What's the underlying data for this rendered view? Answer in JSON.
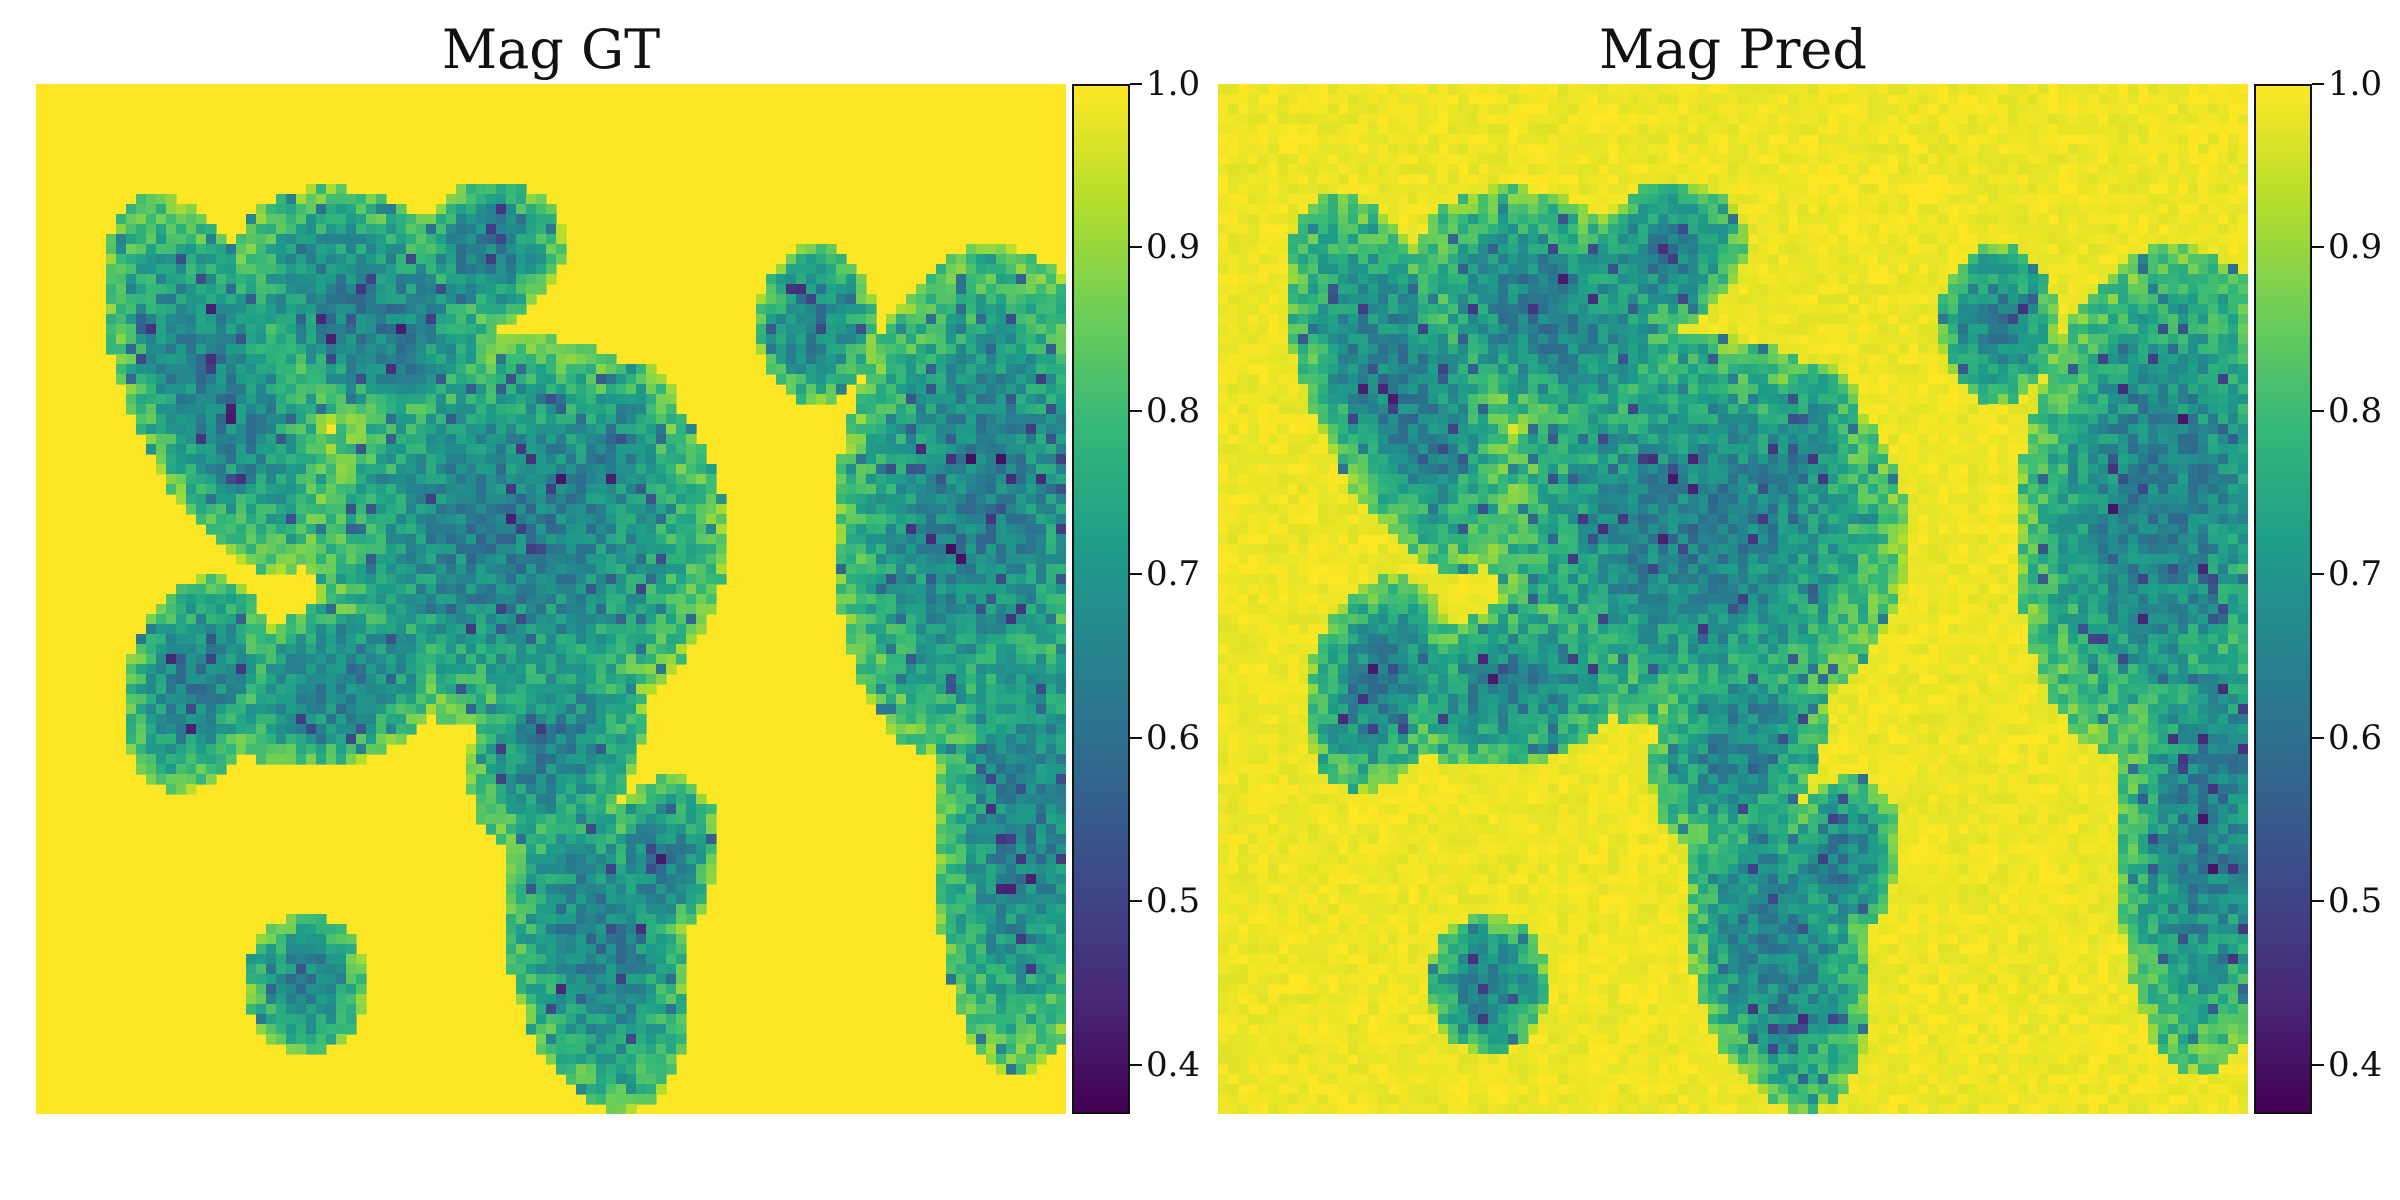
{
  "figure": {
    "background": "#ffffff"
  },
  "colormap": {
    "name": "viridis",
    "stops": [
      "#440154",
      "#482878",
      "#3e4989",
      "#31688e",
      "#26828e",
      "#1f9e89",
      "#35b779",
      "#6ece58",
      "#b5de2b",
      "#fde725"
    ]
  },
  "chart_data": [
    {
      "type": "heatmap",
      "title": "Mag GT",
      "colorbar": {
        "min": 0.37,
        "max": 1.0,
        "ticks": [
          1.0,
          0.9,
          0.8,
          0.7,
          0.6,
          0.5,
          0.4
        ],
        "tick_labels": [
          "1.0",
          "0.9",
          "0.8",
          "0.7",
          "0.6",
          "0.5",
          "0.4"
        ]
      },
      "background_value": 1.0,
      "grid": false
    },
    {
      "type": "heatmap",
      "title": "Mag Pred",
      "colorbar": {
        "min": 0.37,
        "max": 1.0,
        "ticks": [
          1.0,
          0.9,
          0.8,
          0.7,
          0.6,
          0.5,
          0.4
        ],
        "tick_labels": [
          "1.0",
          "0.9",
          "0.8",
          "0.7",
          "0.6",
          "0.5",
          "0.4"
        ]
      },
      "background_value": 1.0,
      "grid": false
    }
  ]
}
